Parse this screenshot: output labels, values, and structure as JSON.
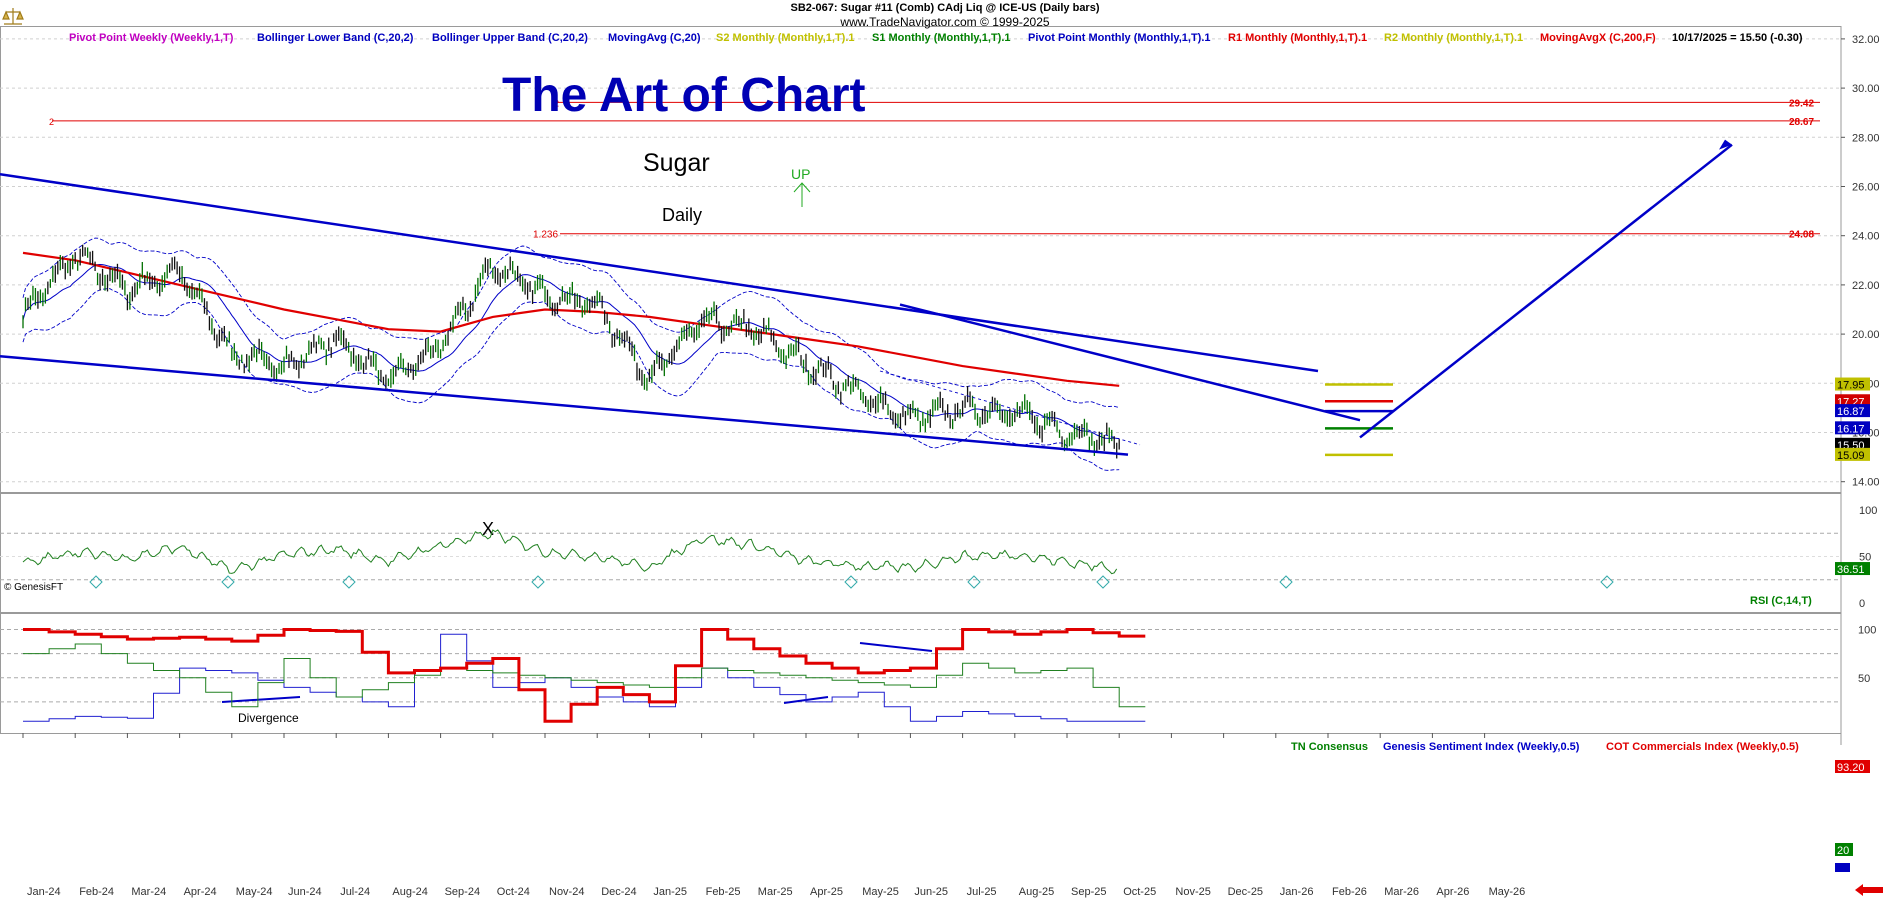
{
  "header": {
    "symbol_line": "SB2-067:  Sugar #11 (Comb) CAdj Liq @ ICE-US  (Daily bars)",
    "site_line": "www.TradeNavigator.com © 1999-2025"
  },
  "legend": [
    {
      "text": "Pivot Point Weekly (Weekly,1,T)",
      "color": "#c000c0"
    },
    {
      "text": "Bollinger Lower Band (C,20,2)",
      "color": "#0000c0"
    },
    {
      "text": "Bollinger Upper Band (C,20,2)",
      "color": "#0000c0"
    },
    {
      "text": "MovingAvg (C,20)",
      "color": "#0000c0"
    },
    {
      "text": "S2 Monthly (Monthly,1,T).1",
      "color": "#c0c000"
    },
    {
      "text": "S1 Monthly (Monthly,1,T).1",
      "color": "#008000"
    },
    {
      "text": "Pivot Point Monthly (Monthly,1,T).1",
      "color": "#0000c0"
    },
    {
      "text": "R1 Monthly (Monthly,1,T).1",
      "color": "#e00000"
    },
    {
      "text": "R2 Monthly (Monthly,1,T).1",
      "color": "#c0c000"
    },
    {
      "text": "MovingAvgX (C,200,F)",
      "color": "#e00000"
    },
    {
      "text": "10/17/2025 = 15.50 (-0.30)",
      "color": "#000000"
    }
  ],
  "annotations": {
    "big_title": "The Art of Chart",
    "subtitle": "Sugar",
    "timeframe": "Daily",
    "up_label": "UP",
    "x_label": "X",
    "divergence": "Divergence",
    "genesis_credit": "© GenesisFT",
    "level_2": "2",
    "level_1236": "1.236",
    "level_2942": "29.42",
    "level_2867": "28.67",
    "level_2408": "24.08"
  },
  "price_badges": {
    "r2": "17.95",
    "r1": "17.27",
    "pp": "16.87",
    "ma": "16.17",
    "last": "15.50",
    "s2": "15.09"
  },
  "rsi_panel": {
    "label": "RSI (C,14,T)",
    "value": "36.51"
  },
  "cot_panel": {
    "tn_label": "TN Consensus",
    "genesis_label": "Genesis Sentiment Index (Weekly,0.5)",
    "cot_label": "COT Commercials Index (Weekly,0.5)",
    "cot_value": "93.20",
    "tn_value": "20"
  },
  "colors": {
    "blue": "#0000c8",
    "red": "#e00000",
    "green": "#008000",
    "yellow": "#c0c000",
    "title_blue": "#0000b4"
  },
  "chart_data": [
    {
      "type": "line",
      "title": "SB2-067: Sugar #11 (Comb) CAdj Liq @ ICE-US (Daily bars)",
      "x_ticks": [
        "Jan-24",
        "Feb-24",
        "Mar-24",
        "Apr-24",
        "May-24",
        "Jun-24",
        "Jul-24",
        "Aug-24",
        "Sep-24",
        "Oct-24",
        "Nov-24",
        "Dec-24",
        "Jan-25",
        "Feb-25",
        "Mar-25",
        "Apr-25",
        "May-25",
        "Jun-25",
        "Jul-25",
        "Aug-25",
        "Sep-25",
        "Oct-25",
        "Nov-25",
        "Dec-25",
        "Jan-26",
        "Feb-26",
        "Mar-26",
        "Apr-26",
        "May-26"
      ],
      "y_ticks": [
        14.0,
        16.0,
        18.0,
        20.0,
        22.0,
        24.0,
        26.0,
        28.0,
        30.0,
        32.0
      ],
      "ylim": [
        13.6,
        32.5
      ],
      "series": [
        {
          "name": "Price",
          "x": [
            "Jan-24",
            "Feb-24",
            "Mar-24",
            "Apr-24",
            "May-24",
            "Jun-24",
            "Jul-24",
            "Aug-24",
            "Sep-24",
            "Oct-24",
            "Nov-24",
            "Dec-24",
            "Jan-25",
            "Feb-25",
            "Mar-25",
            "Apr-25",
            "May-25",
            "Jun-25",
            "Jul-25",
            "Aug-25",
            "Sep-25",
            "Oct-25"
          ],
          "values": [
            20.8,
            23.2,
            21.8,
            22.6,
            19.2,
            18.7,
            19.8,
            18.1,
            19.5,
            22.8,
            21.6,
            21.2,
            18.2,
            20.5,
            20.2,
            18.8,
            17.6,
            16.5,
            17.0,
            16.8,
            16.0,
            15.5
          ]
        },
        {
          "name": "MovingAvgX (C,200,F)",
          "x": [
            "Jan-24",
            "Feb-24",
            "Mar-24",
            "Apr-24",
            "May-24",
            "Jun-24",
            "Jul-24",
            "Aug-24",
            "Sep-24",
            "Oct-24",
            "Nov-24",
            "Dec-24",
            "Jan-25",
            "Feb-25",
            "Mar-25",
            "Apr-25",
            "May-25",
            "Jun-25",
            "Jul-25",
            "Aug-25",
            "Sep-25",
            "Oct-25"
          ],
          "values": [
            23.3,
            23.0,
            22.5,
            22.0,
            21.5,
            21.0,
            20.6,
            20.2,
            20.1,
            20.7,
            21.0,
            20.9,
            20.7,
            20.4,
            20.1,
            19.8,
            19.5,
            19.1,
            18.7,
            18.4,
            18.1,
            17.9
          ]
        }
      ],
      "horizontal_levels": [
        29.42,
        28.67,
        24.08
      ],
      "last_value": 15.5
    },
    {
      "type": "line",
      "title": "RSI (C,14,T)",
      "y_ticks": [
        0,
        25,
        50,
        75,
        100
      ],
      "ylim": [
        0,
        100
      ],
      "series": [
        {
          "name": "RSI (C,14,T)",
          "values": [
            42,
            55,
            48,
            60,
            35,
            52,
            58,
            45,
            62,
            75,
            55,
            50,
            38,
            70,
            62,
            45,
            40,
            38,
            50,
            52,
            44,
            36.51
          ]
        }
      ],
      "last_value": 36.51
    },
    {
      "type": "line",
      "y_ticks": [
        25,
        50,
        75,
        100
      ],
      "ylim": [
        0,
        100
      ],
      "series": [
        {
          "name": "COT Commercials Index (Weekly,0.5)",
          "values": [
            100,
            95,
            90,
            92,
            88,
            100,
            98,
            55,
            60,
            70,
            5,
            40,
            25,
            100,
            80,
            65,
            55,
            60,
            100,
            95,
            100,
            93.2
          ]
        },
        {
          "name": "TN Consensus",
          "values": [
            75,
            85,
            65,
            50,
            20,
            70,
            30,
            45,
            60,
            55,
            50,
            45,
            40,
            60,
            55,
            50,
            45,
            40,
            65,
            55,
            60,
            20
          ]
        },
        {
          "name": "Genesis Sentiment Index (Weekly,0.5)",
          "values": [
            5,
            10,
            8,
            60,
            55,
            40,
            30,
            20,
            95,
            40,
            50,
            30,
            20,
            60,
            40,
            25,
            35,
            5,
            15,
            10,
            5,
            5
          ]
        }
      ],
      "last_value": 93.2
    }
  ]
}
